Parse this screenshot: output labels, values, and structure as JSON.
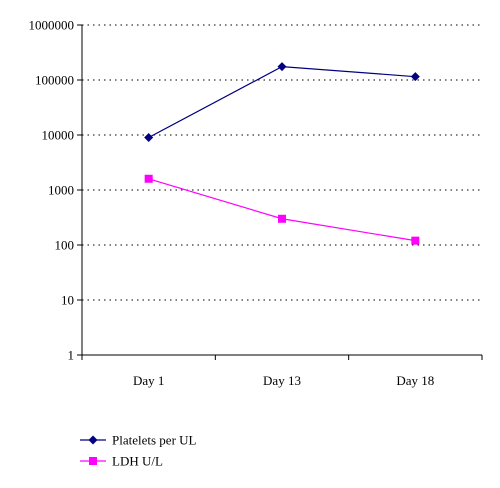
{
  "chart_data": {
    "type": "line",
    "title": "",
    "xlabel": "",
    "ylabel": "",
    "y_scale": "log",
    "ylim": [
      1,
      1000000
    ],
    "y_ticks": [
      {
        "value": 1,
        "label": "1"
      },
      {
        "value": 10,
        "label": "10"
      },
      {
        "value": 100,
        "label": "100"
      },
      {
        "value": 1000,
        "label": "1000"
      },
      {
        "value": 10000,
        "label": "10000"
      },
      {
        "value": 100000,
        "label": "100000"
      },
      {
        "value": 1000000,
        "label": "1000000"
      }
    ],
    "categories": [
      "Day 1",
      "Day 13",
      "Day 18"
    ],
    "grid": "horizontal dotted",
    "legend_position": "bottom",
    "series": [
      {
        "name": "Platelets per UL",
        "values": [
          9000,
          175000,
          115000
        ],
        "color": "#000080",
        "marker": "diamond"
      },
      {
        "name": "LDH U/L",
        "values": [
          1600,
          300,
          120
        ],
        "color": "#ff00ff",
        "marker": "square"
      }
    ]
  }
}
